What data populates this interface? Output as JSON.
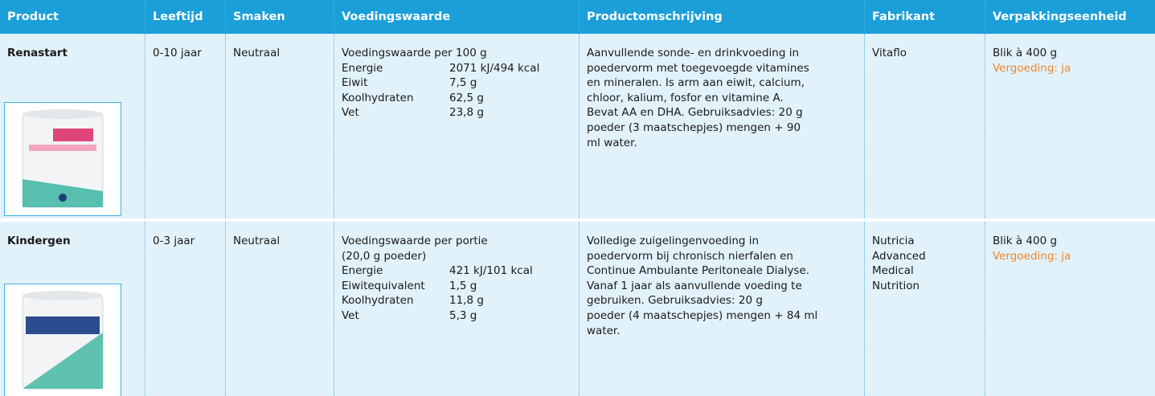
{
  "table": {
    "header": [
      "Product",
      "Leeftijd",
      "Smaken",
      "Voedingswaarde",
      "Productomschrijving",
      "Fabrikant",
      "Verpakkingseenheid"
    ],
    "rows": [
      {
        "product": "Renastart",
        "age": "0-10 jaar",
        "flavor": "Neutraal",
        "nutrition": {
          "heading": [
            "Voedingswaarde per 100 g"
          ],
          "items": [
            {
              "name": "Energie",
              "value": "2071 kJ/494 kcal"
            },
            {
              "name": "Eiwit",
              "value": "7,5 g"
            },
            {
              "name": "Koolhydraten",
              "value": "62,5 g"
            },
            {
              "name": "Vet",
              "value": "23,8 g"
            }
          ]
        },
        "description": [
          "Aanvullende sonde- en drinkvoeding in",
          "poedervorm met toegevoegde vitamines",
          "en mineralen. Is arm aan eiwit, calcium,",
          "chloor, kalium, fosfor en vitamine A.",
          "Bevat AA en DHA. Gebruiksadvies: 20 g",
          "poeder (3 maatschepjes) mengen + 90",
          "ml water."
        ],
        "manufacturer": [
          "Vitaflo"
        ],
        "packaging": "Blik à 400 g",
        "reimbursement": "Vergoeding: ja"
      },
      {
        "product": "Kindergen",
        "age": "0-3 jaar",
        "flavor": "Neutraal",
        "nutrition": {
          "heading": [
            "Voedingswaarde per portie",
            "(20,0 g poeder)"
          ],
          "items": [
            {
              "name": "Energie",
              "value": "421 kJ/101 kcal"
            },
            {
              "name": "Eiwitequivalent",
              "value": "1,5 g"
            },
            {
              "name": "Koolhydraten",
              "value": "11,8 g"
            },
            {
              "name": "Vet",
              "value": "5,3 g"
            }
          ]
        },
        "description": [
          "Volledige zuigelingenvoeding in",
          "poedervorm bij chronisch nierfalen en",
          "Continue Ambulante Peritoneale Dialyse.",
          "Vanaf 1 jaar als aanvullende voeding te",
          "gebruiken. Gebruiksadvies: 20 g",
          "poeder (4 maatschepjes) mengen + 84 ml",
          "water."
        ],
        "manufacturer": [
          "Nutricia",
          "Advanced",
          "Medical",
          "Nutrition"
        ],
        "packaging": "Blik à 400 g",
        "reimbursement": "Vergoeding: ja"
      }
    ]
  }
}
